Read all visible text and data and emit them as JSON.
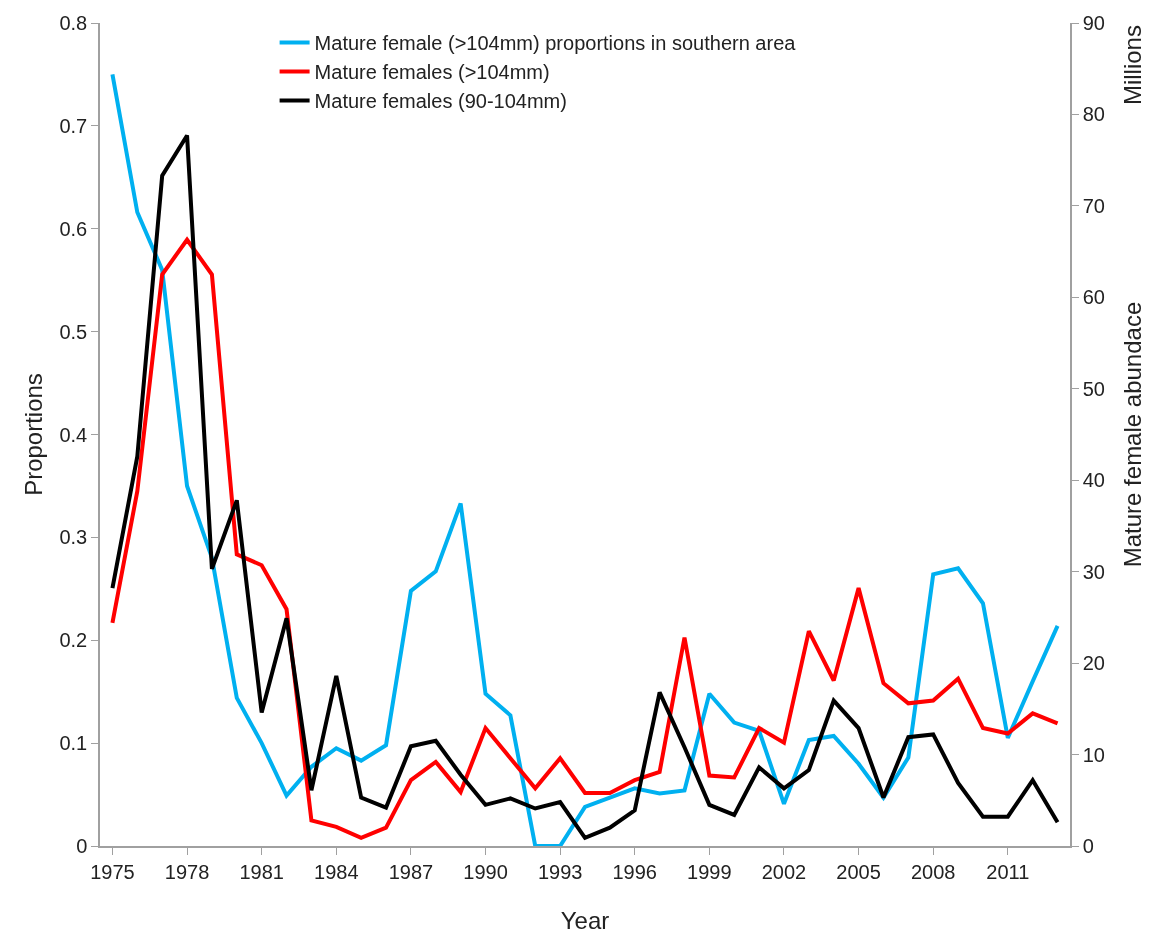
{
  "chart_data": {
    "type": "line",
    "xlabel": "Year",
    "ylabel": "Proportions",
    "y2label": "Mature female abundace",
    "annotations": [
      "Millions"
    ],
    "x": [
      1975,
      1976,
      1977,
      1978,
      1979,
      1980,
      1981,
      1982,
      1983,
      1984,
      1985,
      1986,
      1987,
      1988,
      1989,
      1990,
      1991,
      1992,
      1993,
      1994,
      1995,
      1996,
      1997,
      1998,
      1999,
      2000,
      2001,
      2002,
      2003,
      2004,
      2005,
      2006,
      2007,
      2008,
      2009,
      2010,
      2011,
      2012,
      2013
    ],
    "series": [
      {
        "name": "Mature female (>104mm) proportions in southern area",
        "color": "#00b0f0",
        "values": [
          0.75,
          0.616,
          0.56,
          0.35,
          0.28,
          0.144,
          0.1,
          0.049,
          0.077,
          0.095,
          0.083,
          0.098,
          0.248,
          0.267,
          0.333,
          0.148,
          0.127,
          0,
          0,
          0.038,
          0.047,
          0.056,
          0.051,
          0.054,
          0.148,
          0.12,
          0.112,
          0.041,
          0.103,
          0.107,
          0.08,
          0.047,
          0.086,
          0.264,
          0.27,
          0.236,
          0.105,
          0.16,
          0.214
        ]
      },
      {
        "name": "Mature females (>104mm)",
        "color": "#ff0000",
        "axis": "y2",
        "values": [
          24.4,
          38.8,
          62.5,
          66.3,
          62.5,
          31.9,
          30.7,
          25.9,
          2.8,
          2.1,
          0.9,
          2.0,
          7.2,
          9.2,
          5.9,
          12.9,
          9.6,
          6.3,
          9.6,
          5.8,
          5.8,
          7.2,
          8.1,
          22.8,
          7.7,
          7.5,
          12.9,
          11.3,
          23.5,
          18.1,
          28.2,
          17.8,
          15.6,
          15.9,
          18.3,
          12.9,
          12.3,
          14.5,
          13.4
        ]
      },
      {
        "name": "Mature females (90-104mm)",
        "color": "#000000",
        "axis": "y2",
        "values": [
          28.2,
          42.6,
          73.3,
          77.7,
          30.3,
          37.8,
          14.6,
          24.9,
          6.1,
          18.6,
          5.3,
          4.2,
          10.9,
          11.5,
          7.8,
          4.5,
          5.2,
          4.1,
          4.8,
          0.9,
          2.0,
          3.9,
          16.8,
          10.8,
          4.5,
          3.4,
          8.6,
          6.3,
          8.3,
          15.9,
          12.9,
          5.3,
          11.9,
          12.2,
          6.9,
          3.2,
          3.2,
          7.2,
          2.6
        ]
      }
    ],
    "xlim": [
      1974.5,
      2013.5
    ],
    "xticks": [
      1975,
      1978,
      1981,
      1984,
      1987,
      1990,
      1993,
      1996,
      1999,
      2002,
      2005,
      2008,
      2011
    ],
    "ylim": [
      0,
      0.8
    ],
    "yticks": [
      0,
      0.1,
      0.2,
      0.3,
      0.4,
      0.5,
      0.6,
      0.7,
      0.8
    ],
    "y2lim": [
      0,
      90
    ],
    "y2ticks": [
      0,
      10,
      20,
      30,
      40,
      50,
      60,
      70,
      80,
      90
    ],
    "grid": false,
    "legend": "top",
    "marker": "none",
    "line_style": "solid"
  }
}
